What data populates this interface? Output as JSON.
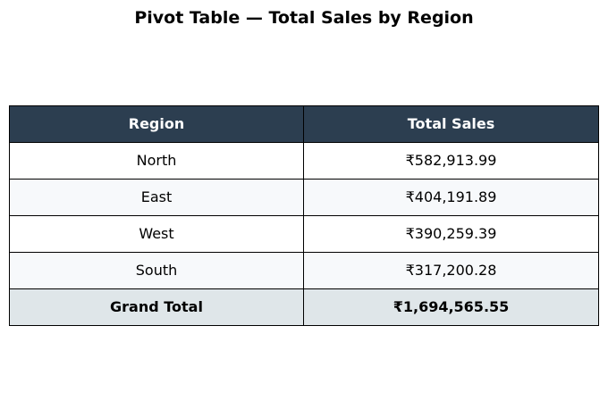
{
  "chart_data": {
    "type": "table",
    "title": "Pivot Table — Total Sales by Region",
    "columns": [
      "Region",
      "Total Sales"
    ],
    "rows": [
      {
        "region": "North",
        "total_sales": "₹582,913.99",
        "value": 582913.99
      },
      {
        "region": "East",
        "total_sales": "₹404,191.89",
        "value": 404191.89
      },
      {
        "region": "West",
        "total_sales": "₹390,259.39",
        "value": 390259.39
      },
      {
        "region": "South",
        "total_sales": "₹317,200.28",
        "value": 317200.28
      }
    ],
    "total": {
      "label": "Grand Total",
      "total_sales": "₹1,694,565.55",
      "value": 1694565.55
    },
    "colors": {
      "header_bg": "#2c3e50",
      "header_text": "#ffffff",
      "row_alt_bg": "#f7f9fb",
      "total_bg": "#dfe6e9"
    }
  }
}
